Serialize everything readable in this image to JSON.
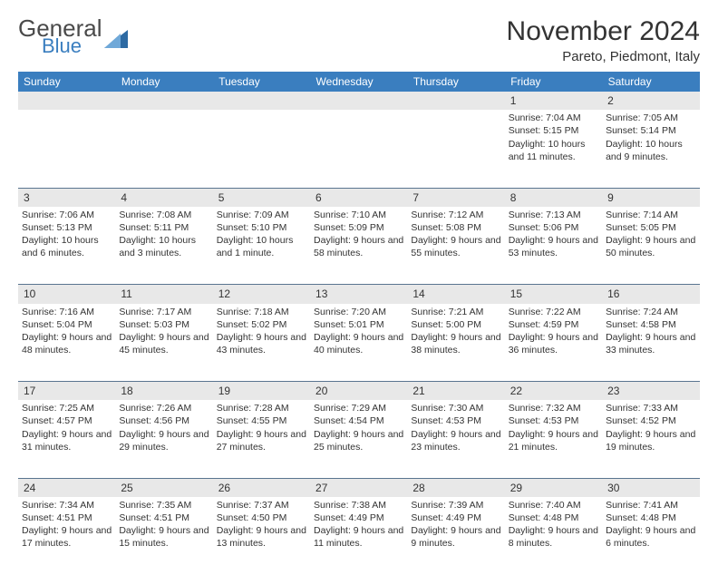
{
  "brand": {
    "top": "General",
    "bottom": "Blue",
    "triangle_color": "#2d6aa3"
  },
  "header": {
    "month_title": "November 2024",
    "location": "Pareto, Piedmont, Italy"
  },
  "columns": [
    "Sunday",
    "Monday",
    "Tuesday",
    "Wednesday",
    "Thursday",
    "Friday",
    "Saturday"
  ],
  "colors": {
    "header_bg": "#3a7ebf",
    "header_text": "#ffffff",
    "daynum_bg": "#e8e8e8",
    "row_border": "#5a7590",
    "page_bg": "#ffffff",
    "text": "#333333"
  },
  "typography": {
    "month_title_pt": 30,
    "location_pt": 15,
    "weekday_pt": 12,
    "daynum_pt": 12,
    "cell_pt": 10.5
  },
  "weeks": [
    [
      null,
      null,
      null,
      null,
      null,
      {
        "day": "1",
        "sunrise": "Sunrise: 7:04 AM",
        "sunset": "Sunset: 5:15 PM",
        "daylight": "Daylight: 10 hours and 11 minutes."
      },
      {
        "day": "2",
        "sunrise": "Sunrise: 7:05 AM",
        "sunset": "Sunset: 5:14 PM",
        "daylight": "Daylight: 10 hours and 9 minutes."
      }
    ],
    [
      {
        "day": "3",
        "sunrise": "Sunrise: 7:06 AM",
        "sunset": "Sunset: 5:13 PM",
        "daylight": "Daylight: 10 hours and 6 minutes."
      },
      {
        "day": "4",
        "sunrise": "Sunrise: 7:08 AM",
        "sunset": "Sunset: 5:11 PM",
        "daylight": "Daylight: 10 hours and 3 minutes."
      },
      {
        "day": "5",
        "sunrise": "Sunrise: 7:09 AM",
        "sunset": "Sunset: 5:10 PM",
        "daylight": "Daylight: 10 hours and 1 minute."
      },
      {
        "day": "6",
        "sunrise": "Sunrise: 7:10 AM",
        "sunset": "Sunset: 5:09 PM",
        "daylight": "Daylight: 9 hours and 58 minutes."
      },
      {
        "day": "7",
        "sunrise": "Sunrise: 7:12 AM",
        "sunset": "Sunset: 5:08 PM",
        "daylight": "Daylight: 9 hours and 55 minutes."
      },
      {
        "day": "8",
        "sunrise": "Sunrise: 7:13 AM",
        "sunset": "Sunset: 5:06 PM",
        "daylight": "Daylight: 9 hours and 53 minutes."
      },
      {
        "day": "9",
        "sunrise": "Sunrise: 7:14 AM",
        "sunset": "Sunset: 5:05 PM",
        "daylight": "Daylight: 9 hours and 50 minutes."
      }
    ],
    [
      {
        "day": "10",
        "sunrise": "Sunrise: 7:16 AM",
        "sunset": "Sunset: 5:04 PM",
        "daylight": "Daylight: 9 hours and 48 minutes."
      },
      {
        "day": "11",
        "sunrise": "Sunrise: 7:17 AM",
        "sunset": "Sunset: 5:03 PM",
        "daylight": "Daylight: 9 hours and 45 minutes."
      },
      {
        "day": "12",
        "sunrise": "Sunrise: 7:18 AM",
        "sunset": "Sunset: 5:02 PM",
        "daylight": "Daylight: 9 hours and 43 minutes."
      },
      {
        "day": "13",
        "sunrise": "Sunrise: 7:20 AM",
        "sunset": "Sunset: 5:01 PM",
        "daylight": "Daylight: 9 hours and 40 minutes."
      },
      {
        "day": "14",
        "sunrise": "Sunrise: 7:21 AM",
        "sunset": "Sunset: 5:00 PM",
        "daylight": "Daylight: 9 hours and 38 minutes."
      },
      {
        "day": "15",
        "sunrise": "Sunrise: 7:22 AM",
        "sunset": "Sunset: 4:59 PM",
        "daylight": "Daylight: 9 hours and 36 minutes."
      },
      {
        "day": "16",
        "sunrise": "Sunrise: 7:24 AM",
        "sunset": "Sunset: 4:58 PM",
        "daylight": "Daylight: 9 hours and 33 minutes."
      }
    ],
    [
      {
        "day": "17",
        "sunrise": "Sunrise: 7:25 AM",
        "sunset": "Sunset: 4:57 PM",
        "daylight": "Daylight: 9 hours and 31 minutes."
      },
      {
        "day": "18",
        "sunrise": "Sunrise: 7:26 AM",
        "sunset": "Sunset: 4:56 PM",
        "daylight": "Daylight: 9 hours and 29 minutes."
      },
      {
        "day": "19",
        "sunrise": "Sunrise: 7:28 AM",
        "sunset": "Sunset: 4:55 PM",
        "daylight": "Daylight: 9 hours and 27 minutes."
      },
      {
        "day": "20",
        "sunrise": "Sunrise: 7:29 AM",
        "sunset": "Sunset: 4:54 PM",
        "daylight": "Daylight: 9 hours and 25 minutes."
      },
      {
        "day": "21",
        "sunrise": "Sunrise: 7:30 AM",
        "sunset": "Sunset: 4:53 PM",
        "daylight": "Daylight: 9 hours and 23 minutes."
      },
      {
        "day": "22",
        "sunrise": "Sunrise: 7:32 AM",
        "sunset": "Sunset: 4:53 PM",
        "daylight": "Daylight: 9 hours and 21 minutes."
      },
      {
        "day": "23",
        "sunrise": "Sunrise: 7:33 AM",
        "sunset": "Sunset: 4:52 PM",
        "daylight": "Daylight: 9 hours and 19 minutes."
      }
    ],
    [
      {
        "day": "24",
        "sunrise": "Sunrise: 7:34 AM",
        "sunset": "Sunset: 4:51 PM",
        "daylight": "Daylight: 9 hours and 17 minutes."
      },
      {
        "day": "25",
        "sunrise": "Sunrise: 7:35 AM",
        "sunset": "Sunset: 4:51 PM",
        "daylight": "Daylight: 9 hours and 15 minutes."
      },
      {
        "day": "26",
        "sunrise": "Sunrise: 7:37 AM",
        "sunset": "Sunset: 4:50 PM",
        "daylight": "Daylight: 9 hours and 13 minutes."
      },
      {
        "day": "27",
        "sunrise": "Sunrise: 7:38 AM",
        "sunset": "Sunset: 4:49 PM",
        "daylight": "Daylight: 9 hours and 11 minutes."
      },
      {
        "day": "28",
        "sunrise": "Sunrise: 7:39 AM",
        "sunset": "Sunset: 4:49 PM",
        "daylight": "Daylight: 9 hours and 9 minutes."
      },
      {
        "day": "29",
        "sunrise": "Sunrise: 7:40 AM",
        "sunset": "Sunset: 4:48 PM",
        "daylight": "Daylight: 9 hours and 8 minutes."
      },
      {
        "day": "30",
        "sunrise": "Sunrise: 7:41 AM",
        "sunset": "Sunset: 4:48 PM",
        "daylight": "Daylight: 9 hours and 6 minutes."
      }
    ]
  ]
}
